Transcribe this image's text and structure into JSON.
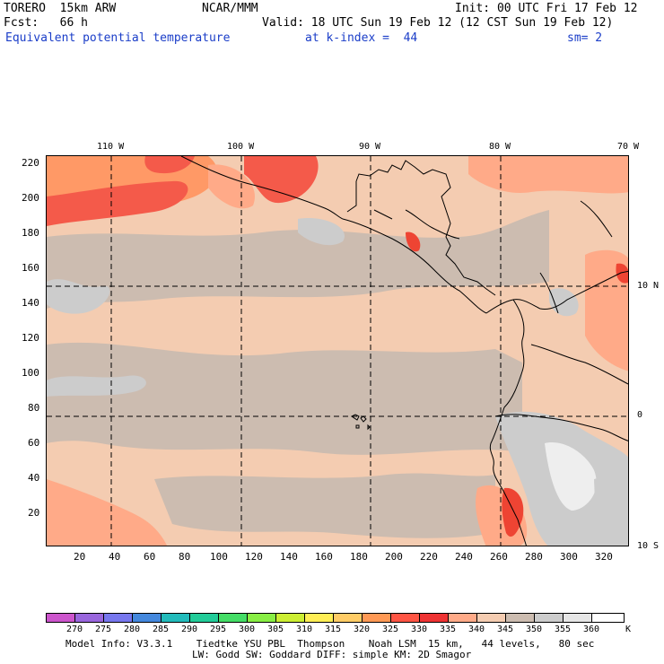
{
  "header": {
    "line1_left": "TORERO  15km ARW",
    "line1_mid": "NCAR/MMM",
    "line1_right": "Init: 00 UTC Fri 17 Feb 12",
    "line2_left": "Fcst:   66 h",
    "line2_right": "Valid: 18 UTC Sun 19 Feb 12 (12 CST Sun 19 Feb 12)",
    "line3_field": "Equivalent potential temperature",
    "line3_level": "at k-index =  44",
    "line3_sm": "sm= 2"
  },
  "map": {
    "top_lon_labels": [
      "110 W",
      "100 W",
      "90 W",
      "80 W",
      "70 W"
    ],
    "right_lat_labels": [
      "10 N",
      "0",
      "10 S"
    ],
    "left_grid_labels": [
      "220",
      "200",
      "180",
      "160",
      "140",
      "120",
      "100",
      "80",
      "60",
      "40",
      "20"
    ],
    "bottom_grid_labels": [
      "20",
      "40",
      "60",
      "80",
      "100",
      "120",
      "140",
      "160",
      "180",
      "200",
      "220",
      "240",
      "260",
      "280",
      "300",
      "320"
    ],
    "graticule": "dashed"
  },
  "colorbar": {
    "unit": "K",
    "labels": [
      "270",
      "275",
      "280",
      "285",
      "290",
      "295",
      "300",
      "305",
      "310",
      "315",
      "320",
      "325",
      "330",
      "335",
      "340",
      "345",
      "350",
      "355",
      "360"
    ],
    "colors": [
      "#cc55cc",
      "#9966dd",
      "#7777ee",
      "#4488dd",
      "#22bbbb",
      "#22cc99",
      "#44dd66",
      "#88ee44",
      "#ccee33",
      "#ffee55",
      "#ffcc66",
      "#ff9955",
      "#ff5544",
      "#ee3333",
      "#ffaa88",
      "#f4ccb1",
      "#ccbcb0",
      "#cccccc",
      "#e6e6e6",
      "#ffffff"
    ]
  },
  "footer": {
    "line1": "Model Info: V3.3.1    Tiedtke YSU PBL  Thompson    Noah LSM  15 km,   44 levels,   80 sec",
    "line2": "LW: Godd SW: Goddard DIFF: simple KM: 2D Smagor"
  }
}
